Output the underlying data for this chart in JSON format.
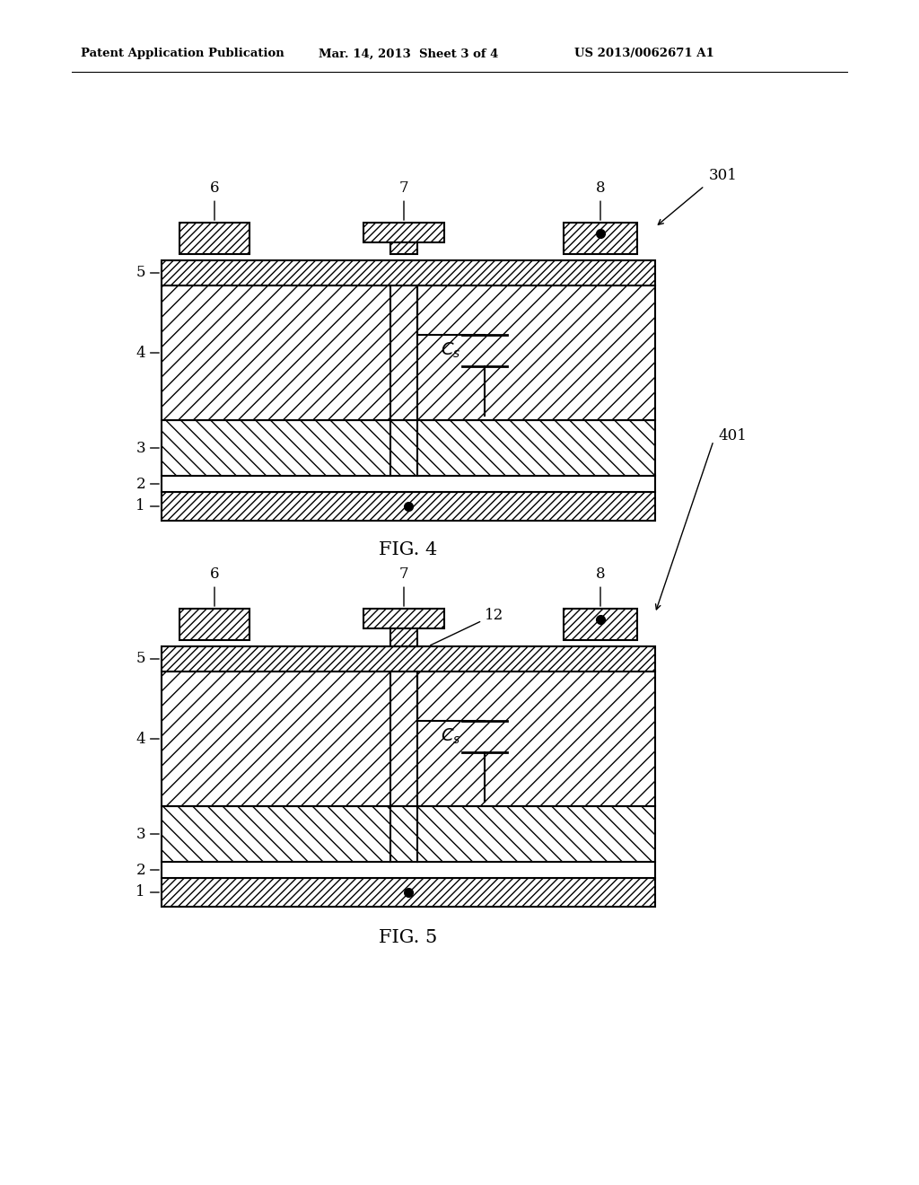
{
  "bg_color": "#ffffff",
  "header_text1": "Patent Application Publication",
  "header_text2": "Mar. 14, 2013  Sheet 3 of 4",
  "header_text3": "US 2013/0062671 A1",
  "fig4_label": "FIG. 4",
  "fig5_label": "FIG. 5",
  "fig4_ref": "301",
  "fig5_ref": "401"
}
